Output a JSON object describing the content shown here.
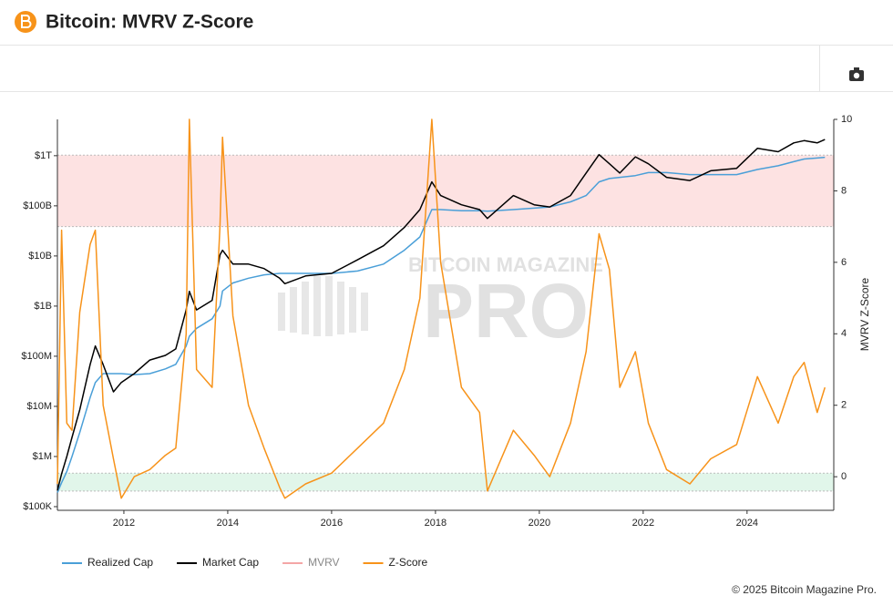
{
  "header": {
    "title": "Bitcoin: MVRV Z-Score"
  },
  "footer": "© 2025 Bitcoin Magazine Pro.",
  "watermark": {
    "top": "BITCOIN MAGAZINE",
    "main": "PRO"
  },
  "chart_data": {
    "type": "line",
    "y2_label": "MVRV Z-Score",
    "log_y": true,
    "xlim": [
      2010.72,
      2025.67
    ],
    "xticks": [
      2012,
      2014,
      2016,
      2018,
      2020,
      2022,
      2024
    ],
    "ylim": [
      84500,
      5300000000000
    ],
    "yticks": [
      {
        "value": 100000,
        "label": "$100K"
      },
      {
        "value": 1000000,
        "label": "$1M"
      },
      {
        "value": 10000000,
        "label": "$10M"
      },
      {
        "value": 100000000,
        "label": "$100M"
      },
      {
        "value": 1000000000,
        "label": "$1B"
      },
      {
        "value": 10000000000,
        "label": "$10B"
      },
      {
        "value": 100000000000,
        "label": "$100B"
      },
      {
        "value": 1000000000000,
        "label": "$1T"
      }
    ],
    "y2lim": [
      -0.94,
      10
    ],
    "y2ticks": [
      0,
      2,
      4,
      6,
      8,
      10
    ],
    "zones": [
      {
        "from": 7,
        "to": 9,
        "color": "#fde2e2"
      },
      {
        "from": -0.4,
        "to": 0.1,
        "color": "#e1f6ea"
      }
    ],
    "x": [
      2010.72,
      2010.8,
      2010.9,
      2011.0,
      2011.15,
      2011.35,
      2011.45,
      2011.6,
      2011.8,
      2011.95,
      2012.2,
      2012.5,
      2012.8,
      2013.0,
      2013.2,
      2013.26,
      2013.4,
      2013.7,
      2013.85,
      2013.9,
      2014.1,
      2014.4,
      2014.7,
      2015.0,
      2015.1,
      2015.5,
      2016.0,
      2016.5,
      2017.0,
      2017.4,
      2017.7,
      2017.93,
      2018.1,
      2018.5,
      2018.85,
      2019.0,
      2019.5,
      2019.9,
      2020.2,
      2020.6,
      2020.9,
      2021.15,
      2021.35,
      2021.55,
      2021.85,
      2022.1,
      2022.45,
      2022.9,
      2023.3,
      2023.8,
      2024.2,
      2024.6,
      2024.9,
      2025.1,
      2025.35,
      2025.5
    ],
    "series": [
      {
        "name": "Realized Cap",
        "color": "#4a9fd8",
        "axis": "y",
        "values": [
          190000,
          300000,
          500000,
          1000000,
          3000000,
          15000000,
          30000000,
          45000000,
          45000000,
          45000000,
          43000000,
          45000000,
          56000000,
          69000000,
          160000000,
          250000000,
          360000000,
          560000000,
          1000000000,
          2000000000,
          2900000000,
          3600000000,
          4200000000,
          4500000000,
          4500000000,
          4500000000,
          4500000000,
          5000000000,
          6900000000,
          13000000000,
          24000000000,
          84000000000,
          84000000000,
          80000000000,
          80000000000,
          78000000000,
          84000000000,
          90000000000,
          95000000000,
          120000000000,
          160000000000,
          300000000000,
          350000000000,
          370000000000,
          400000000000,
          460000000000,
          460000000000,
          420000000000,
          420000000000,
          420000000000,
          530000000000,
          630000000000,
          760000000000,
          860000000000,
          900000000000,
          930000000000
        ]
      },
      {
        "name": "Market Cap",
        "color": "#000000",
        "axis": "y",
        "values": [
          210000,
          450000,
          1000000,
          2400000,
          8500000,
          68000000,
          160000000,
          68000000,
          19500000,
          30000000,
          45000000,
          84000000,
          104000000,
          140000000,
          840000000,
          1960000000,
          840000000,
          1300000000,
          10500000000,
          13000000000,
          6900000000,
          6900000000,
          5600000000,
          3600000000,
          2800000000,
          4000000000,
          4500000000,
          8400000000,
          16000000000,
          37000000000,
          84000000000,
          300000000000,
          160000000000,
          105000000000,
          84000000000,
          56000000000,
          160000000000,
          105000000000,
          95000000000,
          160000000000,
          450000000000,
          1050000000000,
          690000000000,
          450000000000,
          950000000000,
          690000000000,
          370000000000,
          320000000000,
          500000000000,
          560000000000,
          1400000000000,
          1200000000000,
          1800000000000,
          2000000000000,
          1800000000000,
          2100000000000
        ]
      },
      {
        "name": "MVRV",
        "color": "#f4a6a6",
        "hidden": true
      },
      {
        "name": "Z-Score",
        "color": "#f7931a",
        "axis": "y2",
        "values": [
          -0.2,
          6.9,
          1.5,
          1.3,
          4.6,
          6.5,
          6.9,
          2.0,
          0.5,
          -0.6,
          0.0,
          0.2,
          0.6,
          0.8,
          4.0,
          10.0,
          3.0,
          2.5,
          7.0,
          9.5,
          4.5,
          2.0,
          0.8,
          -0.3,
          -0.6,
          -0.2,
          0.1,
          0.8,
          1.5,
          3.0,
          5.0,
          10.0,
          6.0,
          2.5,
          1.8,
          -0.4,
          1.3,
          0.6,
          0.0,
          1.5,
          3.5,
          6.8,
          5.8,
          2.5,
          3.5,
          1.5,
          0.2,
          -0.2,
          0.5,
          0.9,
          2.8,
          1.5,
          2.8,
          3.2,
          1.8,
          2.5
        ]
      }
    ],
    "legend": "bottom-left"
  }
}
